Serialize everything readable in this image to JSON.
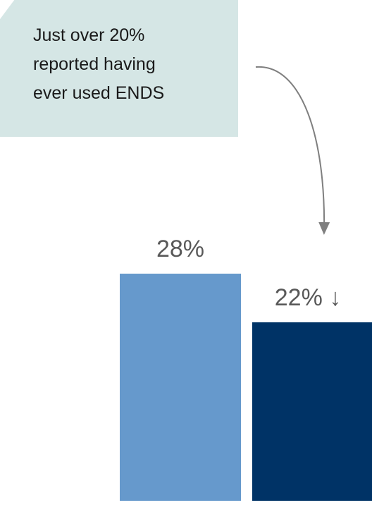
{
  "annotation": {
    "lines": [
      "Just over 20%",
      "reported having",
      "ever used ENDS"
    ]
  },
  "colors": {
    "callout_bg": "#d5e6e5",
    "arrow": "#7f7f7f",
    "label_text": "#595959"
  },
  "chart_data": {
    "type": "bar",
    "categories": [
      "",
      ""
    ],
    "values": [
      28,
      22
    ],
    "data_labels": [
      "28%",
      "22% ↓"
    ],
    "bar_colors": [
      "#6699cc",
      "#003366"
    ],
    "ylim": [
      0,
      36
    ],
    "grid": false,
    "legend": "none"
  }
}
